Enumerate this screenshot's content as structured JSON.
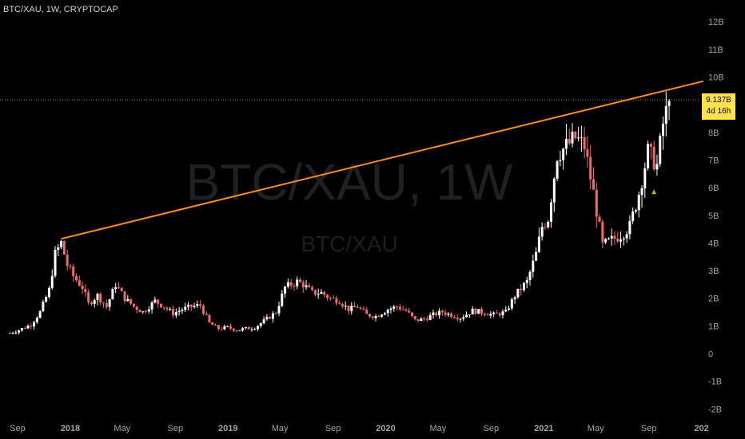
{
  "symbol_title": "BTC/XAU, 1W, CRYPTOCAP",
  "watermark": {
    "main": "BTC/XAU, 1W",
    "sub": "BTC/XAU"
  },
  "price_badge": {
    "price": "9.137B",
    "countdown": "4d 16h"
  },
  "colors": {
    "background": "#000000",
    "up": "#ffffff",
    "down": "#f06a6a",
    "trendline": "#ff8c1a",
    "badge": "#ffe24d",
    "axis_text": "#a0a4ad"
  },
  "chart_data": {
    "type": "candlestick",
    "title": "BTC/XAU, 1W, CRYPTOCAP",
    "y_axis": {
      "unit": "B",
      "range": [
        -2,
        12.5
      ],
      "tick_labels": [
        "12B",
        "11B",
        "10B",
        "9B",
        "8B",
        "7B",
        "6B",
        "5B",
        "4B",
        "3B",
        "2B",
        "1B",
        "0",
        "-1B",
        "-2B"
      ],
      "tick_values": [
        12,
        11,
        10,
        9,
        8,
        7,
        6,
        5,
        4,
        3,
        2,
        1,
        0,
        -1,
        -2
      ]
    },
    "x_axis": {
      "tick_labels": [
        "Sep",
        "2018",
        "May",
        "Sep",
        "2019",
        "May",
        "Sep",
        "2020",
        "May",
        "Sep",
        "2021",
        "May",
        "Sep",
        "202"
      ],
      "tick_dates": [
        "2017-09-01",
        "2018-01-01",
        "2018-05-01",
        "2018-09-01",
        "2019-01-01",
        "2019-05-01",
        "2019-09-01",
        "2020-01-01",
        "2020-05-01",
        "2020-09-01",
        "2021-01-01",
        "2021-05-01",
        "2021-09-01",
        "2022-01-01"
      ]
    },
    "last_price": 9.137,
    "close_series": [
      [
        "2017-08-14",
        0.75
      ],
      [
        "2017-09-04",
        0.85
      ],
      [
        "2017-10-02",
        1.05
      ],
      [
        "2017-10-23",
        1.5
      ],
      [
        "2017-11-13",
        2.3
      ],
      [
        "2017-11-27",
        3.6
      ],
      [
        "2017-12-11",
        4.0
      ],
      [
        "2017-12-25",
        3.2
      ],
      [
        "2018-01-08",
        2.8
      ],
      [
        "2018-01-29",
        2.4
      ],
      [
        "2018-02-12",
        1.8
      ],
      [
        "2018-03-05",
        2.1
      ],
      [
        "2018-03-26",
        1.7
      ],
      [
        "2018-04-16",
        2.5
      ],
      [
        "2018-05-07",
        2.0
      ],
      [
        "2018-05-28",
        1.7
      ],
      [
        "2018-06-18",
        1.5
      ],
      [
        "2018-07-16",
        1.9
      ],
      [
        "2018-08-06",
        1.7
      ],
      [
        "2018-08-27",
        1.45
      ],
      [
        "2018-09-17",
        1.6
      ],
      [
        "2018-10-08",
        1.7
      ],
      [
        "2018-10-29",
        1.75
      ],
      [
        "2018-11-19",
        1.1
      ],
      [
        "2018-12-10",
        0.9
      ],
      [
        "2018-12-31",
        0.95
      ],
      [
        "2019-01-21",
        0.85
      ],
      [
        "2019-02-11",
        0.9
      ],
      [
        "2019-03-04",
        0.95
      ],
      [
        "2019-04-01",
        1.25
      ],
      [
        "2019-04-22",
        1.5
      ],
      [
        "2019-05-13",
        2.4
      ],
      [
        "2019-06-10",
        2.6
      ],
      [
        "2019-06-24",
        2.5
      ],
      [
        "2019-07-15",
        2.2
      ],
      [
        "2019-08-05",
        2.2
      ],
      [
        "2019-08-26",
        2.0
      ],
      [
        "2019-09-16",
        1.9
      ],
      [
        "2019-10-07",
        1.6
      ],
      [
        "2019-10-28",
        1.7
      ],
      [
        "2019-11-18",
        1.4
      ],
      [
        "2019-12-09",
        1.35
      ],
      [
        "2020-01-06",
        1.6
      ],
      [
        "2020-01-27",
        1.7
      ],
      [
        "2020-02-17",
        1.55
      ],
      [
        "2020-03-09",
        1.2
      ],
      [
        "2020-03-30",
        1.25
      ],
      [
        "2020-04-20",
        1.4
      ],
      [
        "2020-05-11",
        1.5
      ],
      [
        "2020-06-01",
        1.4
      ],
      [
        "2020-06-22",
        1.3
      ],
      [
        "2020-07-20",
        1.55
      ],
      [
        "2020-08-10",
        1.5
      ],
      [
        "2020-09-07",
        1.4
      ],
      [
        "2020-10-05",
        1.5
      ],
      [
        "2020-10-26",
        2.1
      ],
      [
        "2020-11-23",
        2.6
      ],
      [
        "2020-12-14",
        3.6
      ],
      [
        "2020-12-28",
        4.6
      ],
      [
        "2021-01-11",
        4.9
      ],
      [
        "2021-02-01",
        7.2
      ],
      [
        "2021-02-22",
        7.5
      ],
      [
        "2021-03-15",
        7.8
      ],
      [
        "2021-04-05",
        7.5
      ],
      [
        "2021-04-26",
        5.8
      ],
      [
        "2021-05-17",
        3.9
      ],
      [
        "2021-06-07",
        4.1
      ],
      [
        "2021-06-28",
        4.3
      ],
      [
        "2021-07-19",
        4.6
      ],
      [
        "2021-08-09",
        5.8
      ],
      [
        "2021-08-30",
        7.3
      ],
      [
        "2021-09-20",
        6.8
      ],
      [
        "2021-10-04",
        8.3
      ],
      [
        "2021-10-18",
        9.137
      ]
    ],
    "trendline": {
      "start": [
        "2017-12-11",
        4.15
      ],
      "end": [
        "2021-11-01",
        9.6
      ]
    }
  }
}
